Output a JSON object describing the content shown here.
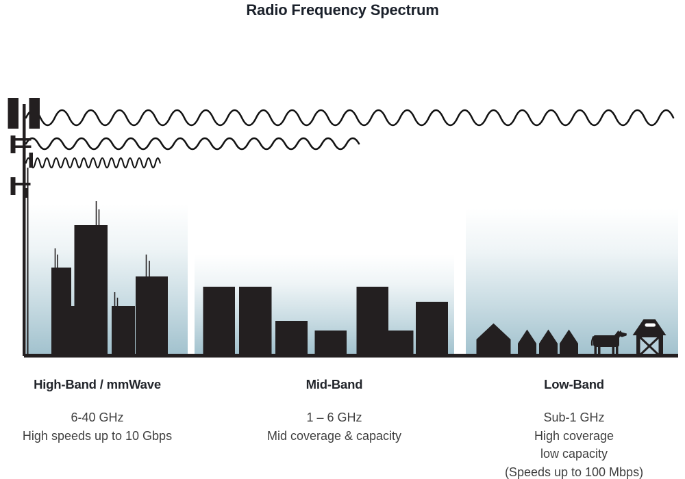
{
  "title": "Radio Frequency Spectrum",
  "bands": [
    {
      "name": "High-Band / mmWave",
      "frequency": "6-40 GHz",
      "details": [
        "High speeds up to 10 Gbps"
      ]
    },
    {
      "name": "Mid-Band",
      "frequency": "1 – 6 GHz",
      "details": [
        "Mid coverage & capacity"
      ]
    },
    {
      "name": "Low-Band",
      "frequency": "Sub-1 GHz",
      "details": [
        "High coverage",
        "low capacity",
        "(Speeds up to 100 Mbps)"
      ]
    }
  ],
  "scene": {
    "icons": [
      "cell-tower-icon",
      "long-wavelength-wave-icon",
      "mid-wavelength-wave-icon",
      "short-wavelength-wave-icon",
      "city-skyline-icon",
      "midrise-buildings-icon",
      "suburb-houses-icon",
      "cow-icon",
      "barn-icon",
      "ground-line"
    ],
    "colors": {
      "ink": "#231f20",
      "wave_stroke": "#121212",
      "panel_top": "#ffffff",
      "panel_bottom": "#a2c2ce",
      "heading_text": "#22252b",
      "body_text": "#3f3f3f",
      "barn_door": "#b7cfda",
      "barn_slit": "#ffffff"
    }
  }
}
